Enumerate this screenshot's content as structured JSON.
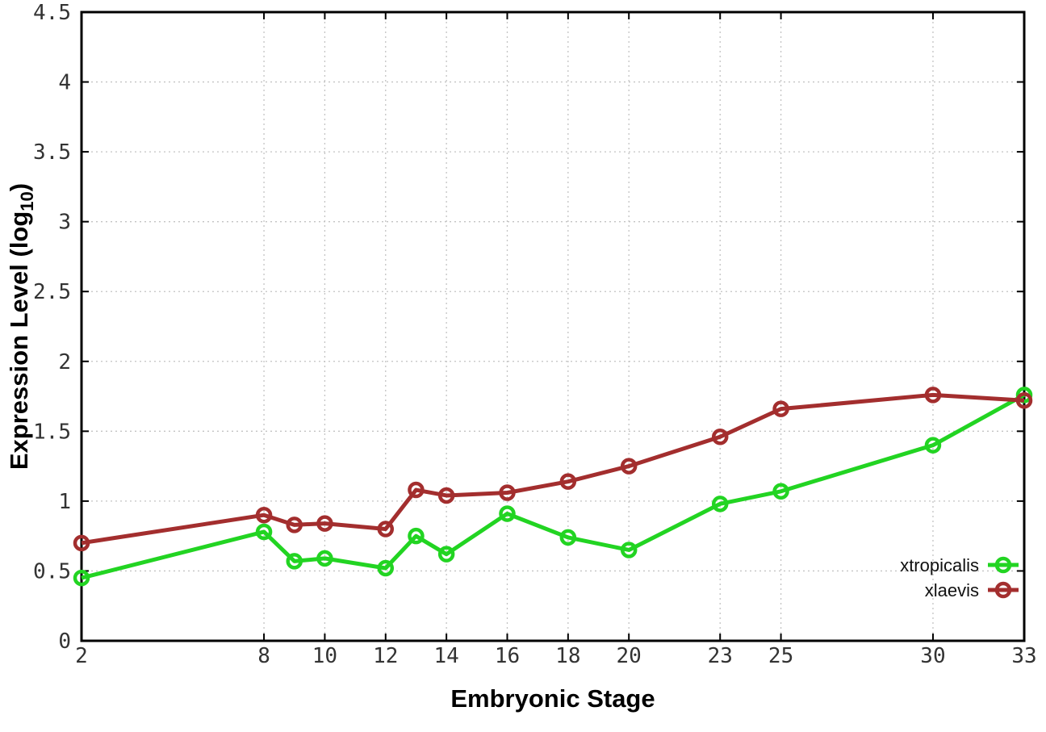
{
  "chart_data": {
    "type": "line",
    "title": "",
    "xlabel": "Embryonic Stage",
    "ylabel_parts": {
      "pre": "Expression Level (log",
      "sub": "10",
      "post": ")"
    },
    "x_range": [
      2,
      33
    ],
    "y_range": [
      0,
      4.5
    ],
    "grid": true,
    "legend_position": "bottom-right",
    "x_ticks": [
      {
        "v": 2,
        "label": "2"
      },
      {
        "v": 8,
        "label": "8"
      },
      {
        "v": 10,
        "label": "10"
      },
      {
        "v": 12,
        "label": "12"
      },
      {
        "v": 14,
        "label": "14"
      },
      {
        "v": 16,
        "label": "16"
      },
      {
        "v": 18,
        "label": "18"
      },
      {
        "v": 20,
        "label": "20"
      },
      {
        "v": 23,
        "label": "23"
      },
      {
        "v": 25,
        "label": "25"
      },
      {
        "v": 30,
        "label": "30"
      },
      {
        "v": 33,
        "label": "33"
      }
    ],
    "y_ticks": [
      {
        "v": 0,
        "label": "0"
      },
      {
        "v": 0.5,
        "label": "0.5"
      },
      {
        "v": 1,
        "label": "1"
      },
      {
        "v": 1.5,
        "label": "1.5"
      },
      {
        "v": 2,
        "label": "2"
      },
      {
        "v": 2.5,
        "label": "2.5"
      },
      {
        "v": 3,
        "label": "3"
      },
      {
        "v": 3.5,
        "label": "3.5"
      },
      {
        "v": 4,
        "label": "4"
      },
      {
        "v": 4.5,
        "label": "4.5"
      }
    ],
    "x": [
      2,
      8,
      9,
      10,
      12,
      13,
      14,
      16,
      18,
      20,
      23,
      25,
      30,
      33
    ],
    "series": [
      {
        "name": "xtropicalis",
        "color": "#22d422",
        "marker": "open-circle",
        "values": [
          0.45,
          0.78,
          0.57,
          0.59,
          0.52,
          0.75,
          0.62,
          0.91,
          0.74,
          0.65,
          0.98,
          1.07,
          1.4,
          1.76
        ]
      },
      {
        "name": "xlaevis",
        "color": "#a32e2e",
        "marker": "open-circle",
        "values": [
          0.7,
          0.9,
          0.83,
          0.84,
          0.8,
          1.08,
          1.04,
          1.06,
          1.14,
          1.25,
          1.46,
          1.66,
          1.76,
          1.72
        ]
      }
    ]
  },
  "colors": {
    "background": "#ffffff",
    "grid": "#c3c3c3",
    "axis": "#000000",
    "tick_text": "#333333"
  }
}
